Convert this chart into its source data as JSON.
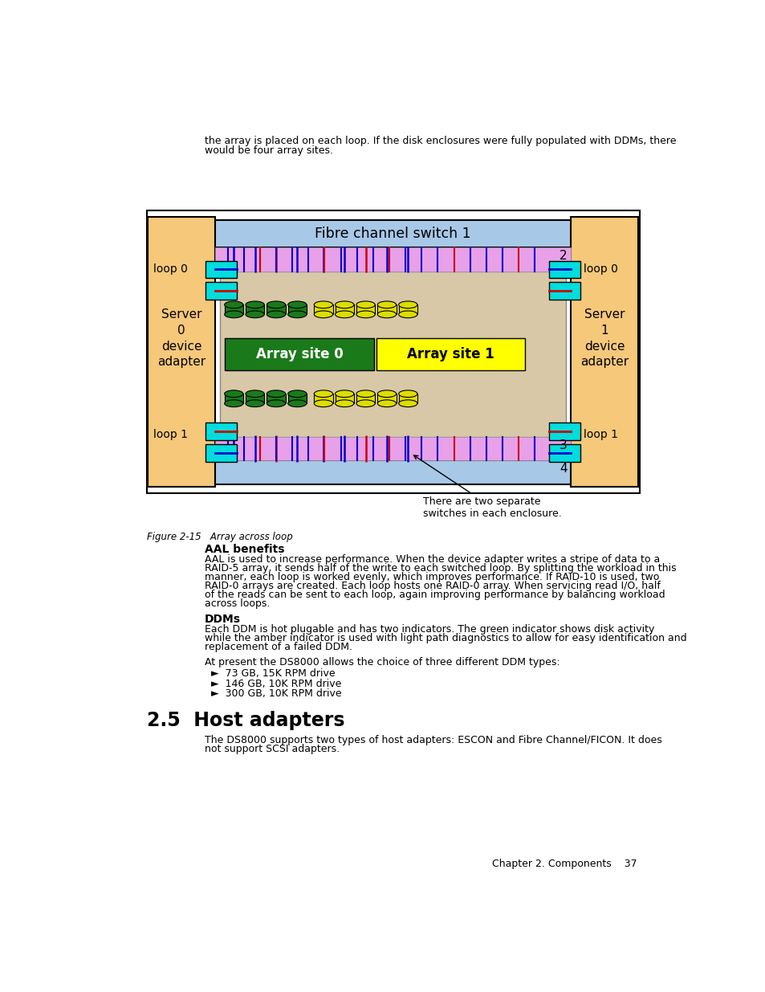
{
  "bg_color": "#ffffff",
  "page_top_text_line1": "the array is placed on each loop. If the disk enclosures were fully populated with DDMs, there",
  "page_top_text_line2": "would be four array sites.",
  "figure_caption": "Figure 2-15   Array across loop",
  "outer_box_color": "#ffffff",
  "server_color": "#f5c87a",
  "switch_color": "#a8c8e8",
  "pink_color": "#e8a0e8",
  "enclosure_color": "#d8c8b0",
  "array0_color": "#1a7a1a",
  "array1_color": "#ffff00",
  "green_disk_color": "#1a7a1a",
  "yellow_disk_color": "#dddd00",
  "cyan_color": "#00dddd",
  "blue_line": "#0000cc",
  "red_line": "#cc0000",
  "section_title": "AAL benefits",
  "section_body_lines": [
    "AAL is used to increase performance. When the device adapter writes a stripe of data to a",
    "RAID-5 array, it sends half of the write to each switched loop. By splitting the workload in this",
    "manner, each loop is worked evenly, which improves performance. If RAID-10 is used, two",
    "RAID-0 arrays are created. Each loop hosts one RAID-0 array. When servicing read I/O, half",
    "of the reads can be sent to each loop, again improving performance by balancing workload",
    "across loops."
  ],
  "ddms_title": "DDMs",
  "ddms_body_lines": [
    "Each DDM is hot plugable and has two indicators. The green indicator shows disk activity",
    "while the amber indicator is used with light path diagnostics to allow for easy identification and",
    "replacement of a failed DDM."
  ],
  "ddms_body2": "At present the DS8000 allows the choice of three different DDM types:",
  "ddms_bullets": [
    "73 GB, 15K RPM drive",
    "146 GB, 10K RPM drive",
    "300 GB, 10K RPM drive"
  ],
  "host_section": "2.5  Host adapters",
  "host_body_lines": [
    "The DS8000 supports two types of host adapters: ESCON and Fibre Channel/FICON. It does",
    "not support SCSI adapters."
  ],
  "footer": "Chapter 2. Components    37"
}
